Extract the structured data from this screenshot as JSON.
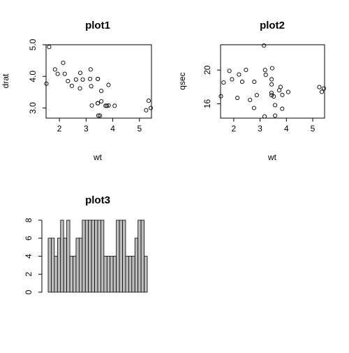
{
  "chart_data": [
    {
      "type": "scatter",
      "title": "plot1",
      "xlabel": "wt",
      "ylabel": "drat",
      "xlim": [
        1.5,
        5.45
      ],
      "ylim": [
        2.68,
        5.0
      ],
      "xticks": [
        "2",
        "3",
        "4",
        "5"
      ],
      "yticks": [
        "3.0",
        "4.0",
        "5.0"
      ],
      "grid": false,
      "points": [
        {
          "x": 2.62,
          "y": 3.9
        },
        {
          "x": 2.875,
          "y": 3.9
        },
        {
          "x": 2.32,
          "y": 3.85
        },
        {
          "x": 3.215,
          "y": 3.08
        },
        {
          "x": 3.44,
          "y": 3.15
        },
        {
          "x": 3.46,
          "y": 2.76
        },
        {
          "x": 3.57,
          "y": 3.21
        },
        {
          "x": 3.19,
          "y": 3.69
        },
        {
          "x": 3.15,
          "y": 3.92
        },
        {
          "x": 3.44,
          "y": 3.92
        },
        {
          "x": 3.44,
          "y": 3.92
        },
        {
          "x": 4.07,
          "y": 3.07
        },
        {
          "x": 3.73,
          "y": 3.07
        },
        {
          "x": 3.78,
          "y": 3.07
        },
        {
          "x": 5.25,
          "y": 2.93
        },
        {
          "x": 5.424,
          "y": 3.0
        },
        {
          "x": 5.345,
          "y": 3.23
        },
        {
          "x": 2.2,
          "y": 4.08
        },
        {
          "x": 1.615,
          "y": 4.93
        },
        {
          "x": 1.835,
          "y": 4.22
        },
        {
          "x": 2.465,
          "y": 3.7
        },
        {
          "x": 3.52,
          "y": 2.76
        },
        {
          "x": 3.435,
          "y": 3.15
        },
        {
          "x": 3.84,
          "y": 3.73
        },
        {
          "x": 3.845,
          "y": 3.08
        },
        {
          "x": 1.935,
          "y": 4.08
        },
        {
          "x": 2.14,
          "y": 4.43
        },
        {
          "x": 1.513,
          "y": 3.77
        },
        {
          "x": 3.17,
          "y": 4.22
        },
        {
          "x": 2.77,
          "y": 3.62
        },
        {
          "x": 3.57,
          "y": 3.54
        },
        {
          "x": 2.78,
          "y": 4.11
        }
      ]
    },
    {
      "type": "scatter",
      "title": "plot2",
      "xlabel": "wt",
      "ylabel": "qsec",
      "xlim": [
        1.5,
        5.45
      ],
      "ylim": [
        14.3,
        23.0
      ],
      "xticks": [
        "2",
        "3",
        "4",
        "5"
      ],
      "yticks": [
        "16",
        "20"
      ],
      "grid": false,
      "points": [
        {
          "x": 2.62,
          "y": 16.46
        },
        {
          "x": 2.875,
          "y": 17.02
        },
        {
          "x": 2.32,
          "y": 18.61
        },
        {
          "x": 3.215,
          "y": 19.44
        },
        {
          "x": 3.44,
          "y": 17.02
        },
        {
          "x": 3.46,
          "y": 20.22
        },
        {
          "x": 3.57,
          "y": 15.84
        },
        {
          "x": 3.19,
          "y": 20.0
        },
        {
          "x": 3.15,
          "y": 22.9
        },
        {
          "x": 3.44,
          "y": 18.3
        },
        {
          "x": 3.44,
          "y": 18.9
        },
        {
          "x": 4.07,
          "y": 17.4
        },
        {
          "x": 3.73,
          "y": 17.6
        },
        {
          "x": 3.78,
          "y": 18.0
        },
        {
          "x": 5.25,
          "y": 17.98
        },
        {
          "x": 5.424,
          "y": 17.82
        },
        {
          "x": 5.345,
          "y": 17.42
        },
        {
          "x": 2.2,
          "y": 19.47
        },
        {
          "x": 1.615,
          "y": 18.52
        },
        {
          "x": 1.835,
          "y": 19.9
        },
        {
          "x": 2.465,
          "y": 20.01
        },
        {
          "x": 3.52,
          "y": 16.87
        },
        {
          "x": 3.435,
          "y": 17.3
        },
        {
          "x": 3.84,
          "y": 15.41
        },
        {
          "x": 3.845,
          "y": 17.05
        },
        {
          "x": 1.935,
          "y": 18.9
        },
        {
          "x": 2.14,
          "y": 16.7
        },
        {
          "x": 1.513,
          "y": 16.9
        },
        {
          "x": 3.17,
          "y": 14.5
        },
        {
          "x": 2.77,
          "y": 15.5
        },
        {
          "x": 3.57,
          "y": 14.6
        },
        {
          "x": 2.78,
          "y": 18.6
        }
      ]
    },
    {
      "type": "bar",
      "title": "plot3",
      "xlabel": "",
      "ylabel": "",
      "ylim": [
        0,
        8
      ],
      "yticks": [
        "0",
        "2",
        "4",
        "6",
        "8"
      ],
      "grid": false,
      "bar_color": "#bebebe",
      "values": [
        6,
        6,
        4,
        6,
        8,
        6,
        8,
        4,
        4,
        6,
        6,
        8,
        8,
        8,
        8,
        8,
        8,
        8,
        4,
        4,
        4,
        4,
        8,
        8,
        8,
        4,
        4,
        4,
        6,
        8,
        8,
        4
      ]
    }
  ]
}
